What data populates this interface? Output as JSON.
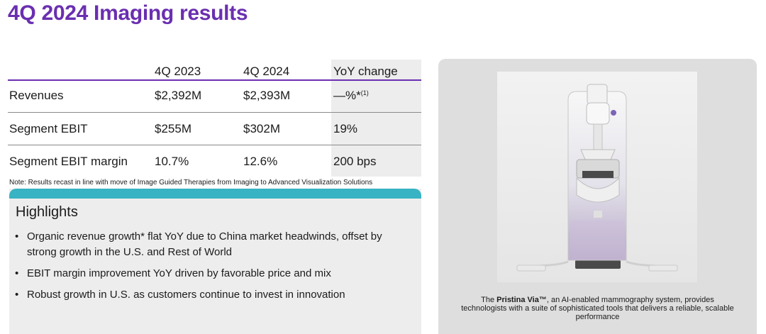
{
  "title": "4Q 2024 Imaging results",
  "table": {
    "headers": [
      "",
      "4Q 2023",
      "4Q 2024",
      "YoY change"
    ],
    "rows": [
      {
        "label": "Revenues",
        "q2023": "$2,392M",
        "q2024": "$2,393M",
        "yoy": "—%*",
        "yoy_footnote": "(1)"
      },
      {
        "label": "Segment EBIT",
        "q2023": "$255M",
        "q2024": "$302M",
        "yoy": "19%"
      },
      {
        "label": "Segment EBIT margin",
        "q2023": "10.7%",
        "q2024": "12.6%",
        "yoy": "200 bps"
      }
    ],
    "note": "Note: Results recast in line with move of Image Guided Therapies from Imaging to Advanced Visualization Solutions"
  },
  "highlights": {
    "title": "Highlights",
    "bullet": "•",
    "items": [
      "Organic revenue growth* flat YoY due to China market headwinds, offset by strong growth in the U.S. and Rest of World",
      "EBIT margin improvement YoY driven by favorable price and mix",
      "Robust growth in U.S. as customers continue to invest in innovation"
    ],
    "accent_color": "#37b3c3"
  },
  "product": {
    "caption_prefix": "The ",
    "caption_name": "Pristina Via™",
    "caption_rest": ", an AI-enabled mammography system, provides technologists with a suite of sophisticated tools that delivers a reliable, scalable performance",
    "image_icon": "mammography-system-icon"
  },
  "colors": {
    "brand": "#6a2fb0",
    "panel": "#ededed",
    "product_panel": "#dedede"
  }
}
